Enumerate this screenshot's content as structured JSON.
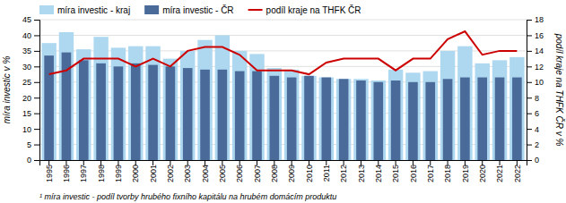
{
  "chart_data": {
    "type": "bar",
    "categories": [
      1995,
      1996,
      1997,
      1998,
      1999,
      2000,
      2001,
      2002,
      2003,
      2004,
      2005,
      2006,
      2007,
      2008,
      2009,
      2010,
      2011,
      2012,
      2013,
      2014,
      2015,
      2016,
      2017,
      2018,
      2019,
      2020,
      2021,
      2022
    ],
    "series": [
      {
        "name": "míra investic - kraj",
        "type": "bar",
        "color": "#add8f0",
        "values": [
          37.5,
          41.0,
          35.5,
          39.5,
          36.0,
          36.5,
          36.5,
          32.5,
          35.0,
          38.5,
          40.0,
          35.0,
          34.0,
          29.5,
          29.0,
          27.0,
          26.5,
          26.0,
          26.0,
          25.5,
          29.0,
          28.0,
          28.5,
          35.0,
          36.5,
          31.0,
          32.0,
          33.0
        ]
      },
      {
        "name": "míra investic - ČR",
        "type": "bar",
        "color": "#4a6b9a",
        "values": [
          33.5,
          34.5,
          32.0,
          31.0,
          30.0,
          31.0,
          30.5,
          30.0,
          29.5,
          29.0,
          29.0,
          28.5,
          28.5,
          27.0,
          26.5,
          27.0,
          26.5,
          26.0,
          25.5,
          25.0,
          25.5,
          25.0,
          25.0,
          26.0,
          26.5,
          26.5,
          26.5,
          26.5
        ]
      },
      {
        "name": "podíl kraje na THFK ČR",
        "type": "line",
        "axis": "y2",
        "color": "#cc0000",
        "values": [
          11.0,
          11.5,
          13.0,
          13.0,
          13.0,
          12.0,
          13.0,
          12.0,
          14.0,
          14.5,
          14.5,
          13.5,
          11.5,
          11.5,
          11.5,
          11.0,
          12.5,
          13.0,
          13.0,
          13.0,
          11.5,
          13.0,
          13.0,
          15.5,
          16.5,
          13.5,
          14.0,
          14.0
        ]
      }
    ],
    "ylabel": "míra investic v %",
    "y2label": "podíl kraje na THFK ČR v %",
    "ylim": [
      0,
      45
    ],
    "yticks": [
      0,
      5,
      10,
      15,
      20,
      25,
      30,
      35,
      40,
      45
    ],
    "y2lim": [
      0,
      18
    ],
    "y2ticks": [
      0,
      2,
      4,
      6,
      8,
      10,
      12,
      14,
      16,
      18
    ],
    "grid": true,
    "legend": "top",
    "footnote": "¹ míra investic - podíl tvorby hrubého fixního kapitálu na hrubém domácím produktu"
  }
}
